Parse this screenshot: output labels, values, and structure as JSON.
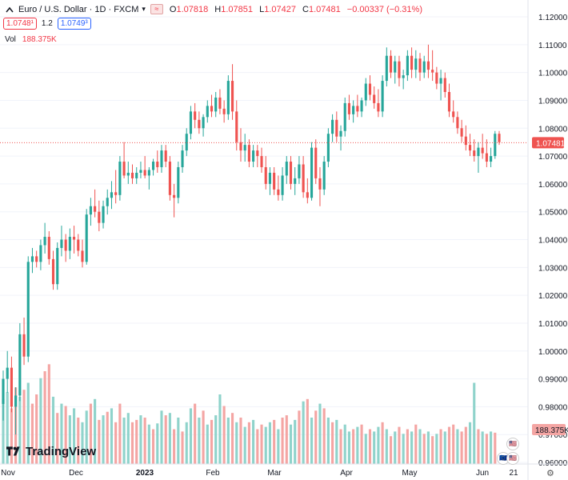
{
  "header": {
    "symbol_title": "Euro / U.S. Dollar · 1D · FXCM",
    "compare_icon": "approx-icon",
    "ohlc": {
      "o_label": "O",
      "o_value": "1.07818",
      "h_label": "H",
      "h_value": "1.07851",
      "l_label": "L",
      "l_value": "1.07427",
      "c_label": "C",
      "c_value": "1.07481",
      "change": "−0.00337 (−0.31%)"
    },
    "sell_price": "1.0748¹",
    "spread": "1.2",
    "buy_price": "1.0749³",
    "vol_label": "Vol",
    "vol_value": "188.375K"
  },
  "price_label": "1.07481",
  "volume_label": "188.375K",
  "brand": "TradingView",
  "colors": {
    "up": "#26a69a",
    "down": "#ef5350",
    "up_vol": "#8fd3cb",
    "down_vol": "#f4a5a3",
    "price_line": "#ef5350"
  },
  "chart_data": {
    "type": "candlestick",
    "price_axis": {
      "min": 0.96,
      "max": 1.12,
      "ticks": [
        "0.96000",
        "0.97000",
        "0.98000",
        "0.99000",
        "1.00000",
        "1.01000",
        "1.02000",
        "1.03000",
        "1.04000",
        "1.05000",
        "1.06000",
        "1.07000",
        "1.08000",
        "1.09000",
        "1.10000",
        "1.11000",
        "1.12000"
      ]
    },
    "time_axis": [
      "Nov",
      "Dec",
      "2023",
      "Feb",
      "Mar",
      "Apr",
      "May",
      "Jun",
      "21"
    ],
    "last_price": 1.07481,
    "ohlc": [
      [
        0.981,
        0.993,
        0.975,
        0.99
      ],
      [
        0.99,
        1.0,
        0.985,
        0.994
      ],
      [
        0.994,
        0.998,
        0.978,
        0.98
      ],
      [
        0.98,
        0.987,
        0.97,
        0.984
      ],
      [
        0.984,
        1.01,
        0.982,
        1.006
      ],
      [
        1.006,
        1.012,
        0.995,
        0.998
      ],
      [
        0.998,
        1.034,
        0.996,
        1.032
      ],
      [
        1.032,
        1.037,
        1.028,
        1.034
      ],
      [
        1.034,
        1.036,
        1.03,
        1.032
      ],
      [
        1.032,
        1.04,
        1.029,
        1.038
      ],
      [
        1.038,
        1.046,
        1.035,
        1.041
      ],
      [
        1.041,
        1.043,
        1.031,
        1.033
      ],
      [
        1.033,
        1.036,
        1.022,
        1.024
      ],
      [
        1.024,
        1.039,
        1.022,
        1.037
      ],
      [
        1.037,
        1.045,
        1.034,
        1.04
      ],
      [
        1.04,
        1.042,
        1.032,
        1.036
      ],
      [
        1.036,
        1.044,
        1.033,
        1.041
      ],
      [
        1.041,
        1.045,
        1.035,
        1.04
      ],
      [
        1.04,
        1.042,
        1.034,
        1.036
      ],
      [
        1.036,
        1.04,
        1.03,
        1.032
      ],
      [
        1.032,
        1.051,
        1.031,
        1.049
      ],
      [
        1.049,
        1.055,
        1.045,
        1.052
      ],
      [
        1.052,
        1.058,
        1.048,
        1.05
      ],
      [
        1.05,
        1.054,
        1.043,
        1.046
      ],
      [
        1.046,
        1.054,
        1.044,
        1.052
      ],
      [
        1.052,
        1.058,
        1.049,
        1.055
      ],
      [
        1.055,
        1.061,
        1.051,
        1.057
      ],
      [
        1.057,
        1.065,
        1.053,
        1.056
      ],
      [
        1.056,
        1.07,
        1.054,
        1.068
      ],
      [
        1.068,
        1.075,
        1.062,
        1.063
      ],
      [
        1.063,
        1.068,
        1.06,
        1.064
      ],
      [
        1.064,
        1.067,
        1.06,
        1.062
      ],
      [
        1.062,
        1.066,
        1.06,
        1.064
      ],
      [
        1.064,
        1.068,
        1.062,
        1.065
      ],
      [
        1.065,
        1.07,
        1.062,
        1.063
      ],
      [
        1.063,
        1.066,
        1.058,
        1.065
      ],
      [
        1.065,
        1.069,
        1.063,
        1.068
      ],
      [
        1.068,
        1.072,
        1.064,
        1.066
      ],
      [
        1.066,
        1.074,
        1.064,
        1.072
      ],
      [
        1.072,
        1.074,
        1.066,
        1.068
      ],
      [
        1.068,
        1.07,
        1.054,
        1.056
      ],
      [
        1.056,
        1.06,
        1.048,
        1.055
      ],
      [
        1.055,
        1.068,
        1.053,
        1.066
      ],
      [
        1.066,
        1.074,
        1.064,
        1.072
      ],
      [
        1.072,
        1.08,
        1.07,
        1.078
      ],
      [
        1.078,
        1.088,
        1.076,
        1.086
      ],
      [
        1.086,
        1.089,
        1.08,
        1.083
      ],
      [
        1.083,
        1.086,
        1.078,
        1.08
      ],
      [
        1.08,
        1.085,
        1.077,
        1.084
      ],
      [
        1.084,
        1.09,
        1.082,
        1.088
      ],
      [
        1.088,
        1.092,
        1.084,
        1.086
      ],
      [
        1.086,
        1.093,
        1.084,
        1.091
      ],
      [
        1.091,
        1.094,
        1.085,
        1.087
      ],
      [
        1.087,
        1.09,
        1.082,
        1.085
      ],
      [
        1.085,
        1.099,
        1.083,
        1.097
      ],
      [
        1.097,
        1.103,
        1.083,
        1.086
      ],
      [
        1.086,
        1.09,
        1.072,
        1.075
      ],
      [
        1.075,
        1.08,
        1.068,
        1.072
      ],
      [
        1.072,
        1.078,
        1.068,
        1.074
      ],
      [
        1.074,
        1.076,
        1.066,
        1.068
      ],
      [
        1.068,
        1.074,
        1.066,
        1.072
      ],
      [
        1.072,
        1.074,
        1.066,
        1.07
      ],
      [
        1.07,
        1.073,
        1.064,
        1.066
      ],
      [
        1.066,
        1.07,
        1.058,
        1.06
      ],
      [
        1.06,
        1.066,
        1.056,
        1.064
      ],
      [
        1.064,
        1.066,
        1.056,
        1.058
      ],
      [
        1.058,
        1.063,
        1.054,
        1.056
      ],
      [
        1.056,
        1.066,
        1.054,
        1.063
      ],
      [
        1.063,
        1.07,
        1.06,
        1.068
      ],
      [
        1.068,
        1.07,
        1.058,
        1.06
      ],
      [
        1.06,
        1.066,
        1.056,
        1.062
      ],
      [
        1.062,
        1.07,
        1.06,
        1.067
      ],
      [
        1.067,
        1.07,
        1.055,
        1.057
      ],
      [
        1.057,
        1.062,
        1.053,
        1.055
      ],
      [
        1.055,
        1.075,
        1.054,
        1.073
      ],
      [
        1.073,
        1.076,
        1.06,
        1.062
      ],
      [
        1.062,
        1.066,
        1.052,
        1.058
      ],
      [
        1.058,
        1.07,
        1.056,
        1.068
      ],
      [
        1.068,
        1.08,
        1.066,
        1.078
      ],
      [
        1.078,
        1.085,
        1.075,
        1.083
      ],
      [
        1.083,
        1.086,
        1.075,
        1.077
      ],
      [
        1.077,
        1.081,
        1.072,
        1.079
      ],
      [
        1.079,
        1.091,
        1.077,
        1.089
      ],
      [
        1.089,
        1.092,
        1.083,
        1.085
      ],
      [
        1.085,
        1.09,
        1.082,
        1.088
      ],
      [
        1.088,
        1.092,
        1.084,
        1.086
      ],
      [
        1.086,
        1.091,
        1.084,
        1.09
      ],
      [
        1.09,
        1.098,
        1.088,
        1.096
      ],
      [
        1.096,
        1.099,
        1.09,
        1.092
      ],
      [
        1.092,
        1.095,
        1.087,
        1.089
      ],
      [
        1.089,
        1.094,
        1.084,
        1.086
      ],
      [
        1.086,
        1.099,
        1.084,
        1.097
      ],
      [
        1.097,
        1.109,
        1.095,
        1.106
      ],
      [
        1.106,
        1.108,
        1.098,
        1.1
      ],
      [
        1.1,
        1.106,
        1.096,
        1.104
      ],
      [
        1.104,
        1.106,
        1.095,
        1.098
      ],
      [
        1.098,
        1.101,
        1.094,
        1.099
      ],
      [
        1.099,
        1.108,
        1.097,
        1.106
      ],
      [
        1.106,
        1.109,
        1.098,
        1.101
      ],
      [
        1.101,
        1.108,
        1.098,
        1.105
      ],
      [
        1.105,
        1.107,
        1.097,
        1.1
      ],
      [
        1.1,
        1.106,
        1.098,
        1.104
      ],
      [
        1.104,
        1.11,
        1.098,
        1.101
      ],
      [
        1.101,
        1.108,
        1.097,
        1.1
      ],
      [
        1.1,
        1.102,
        1.094,
        1.096
      ],
      [
        1.096,
        1.101,
        1.09,
        1.098
      ],
      [
        1.098,
        1.1,
        1.091,
        1.093
      ],
      [
        1.093,
        1.096,
        1.084,
        1.086
      ],
      [
        1.086,
        1.09,
        1.082,
        1.084
      ],
      [
        1.084,
        1.086,
        1.078,
        1.08
      ],
      [
        1.08,
        1.083,
        1.075,
        1.077
      ],
      [
        1.077,
        1.081,
        1.072,
        1.074
      ],
      [
        1.074,
        1.078,
        1.07,
        1.072
      ],
      [
        1.072,
        1.076,
        1.068,
        1.07
      ],
      [
        1.07,
        1.075,
        1.064,
        1.073
      ],
      [
        1.073,
        1.078,
        1.069,
        1.071
      ],
      [
        1.071,
        1.076,
        1.066,
        1.068
      ],
      [
        1.068,
        1.073,
        1.066,
        1.07
      ],
      [
        1.07,
        1.079,
        1.069,
        1.078
      ],
      [
        1.078,
        1.079,
        1.074,
        1.075
      ]
    ],
    "volume": [
      [
        0.56,
        1
      ],
      [
        0.62,
        1
      ],
      [
        0.48,
        0
      ],
      [
        0.66,
        0
      ],
      [
        0.58,
        1
      ],
      [
        0.64,
        0
      ],
      [
        0.7,
        1
      ],
      [
        0.52,
        0
      ],
      [
        0.6,
        0
      ],
      [
        0.74,
        1
      ],
      [
        0.8,
        0
      ],
      [
        0.86,
        0
      ],
      [
        0.58,
        1
      ],
      [
        0.44,
        0
      ],
      [
        0.52,
        1
      ],
      [
        0.5,
        0
      ],
      [
        0.42,
        1
      ],
      [
        0.48,
        1
      ],
      [
        0.4,
        0
      ],
      [
        0.36,
        1
      ],
      [
        0.46,
        1
      ],
      [
        0.52,
        0
      ],
      [
        0.56,
        1
      ],
      [
        0.38,
        0
      ],
      [
        0.42,
        1
      ],
      [
        0.45,
        0
      ],
      [
        0.48,
        1
      ],
      [
        0.36,
        0
      ],
      [
        0.52,
        0
      ],
      [
        0.4,
        1
      ],
      [
        0.44,
        1
      ],
      [
        0.36,
        0
      ],
      [
        0.38,
        0
      ],
      [
        0.42,
        1
      ],
      [
        0.4,
        0
      ],
      [
        0.34,
        1
      ],
      [
        0.3,
        0
      ],
      [
        0.35,
        1
      ],
      [
        0.46,
        1
      ],
      [
        0.42,
        0
      ],
      [
        0.44,
        1
      ],
      [
        0.3,
        0
      ],
      [
        0.4,
        1
      ],
      [
        0.28,
        0
      ],
      [
        0.36,
        1
      ],
      [
        0.48,
        1
      ],
      [
        0.52,
        0
      ],
      [
        0.4,
        1
      ],
      [
        0.46,
        0
      ],
      [
        0.34,
        1
      ],
      [
        0.38,
        0
      ],
      [
        0.42,
        1
      ],
      [
        0.6,
        1
      ],
      [
        0.5,
        0
      ],
      [
        0.4,
        1
      ],
      [
        0.44,
        0
      ],
      [
        0.36,
        1
      ],
      [
        0.4,
        0
      ],
      [
        0.32,
        1
      ],
      [
        0.36,
        0
      ],
      [
        0.38,
        1
      ],
      [
        0.3,
        0
      ],
      [
        0.34,
        0
      ],
      [
        0.32,
        1
      ],
      [
        0.36,
        1
      ],
      [
        0.38,
        0
      ],
      [
        0.3,
        1
      ],
      [
        0.4,
        0
      ],
      [
        0.42,
        0
      ],
      [
        0.34,
        1
      ],
      [
        0.38,
        1
      ],
      [
        0.46,
        0
      ],
      [
        0.54,
        1
      ],
      [
        0.56,
        0
      ],
      [
        0.4,
        1
      ],
      [
        0.46,
        0
      ],
      [
        0.52,
        1
      ],
      [
        0.48,
        0
      ],
      [
        0.4,
        1
      ],
      [
        0.36,
        0
      ],
      [
        0.38,
        1
      ],
      [
        0.3,
        0
      ],
      [
        0.34,
        1
      ],
      [
        0.28,
        1
      ],
      [
        0.3,
        0
      ],
      [
        0.32,
        1
      ],
      [
        0.34,
        0
      ],
      [
        0.26,
        1
      ],
      [
        0.3,
        0
      ],
      [
        0.28,
        1
      ],
      [
        0.32,
        1
      ],
      [
        0.36,
        0
      ],
      [
        0.3,
        1
      ],
      [
        0.24,
        0
      ],
      [
        0.28,
        1
      ],
      [
        0.32,
        0
      ],
      [
        0.26,
        1
      ],
      [
        0.3,
        0
      ],
      [
        0.28,
        1
      ],
      [
        0.34,
        0
      ],
      [
        0.3,
        1
      ],
      [
        0.26,
        0
      ],
      [
        0.28,
        1
      ],
      [
        0.24,
        0
      ],
      [
        0.26,
        1
      ],
      [
        0.3,
        0
      ],
      [
        0.28,
        1
      ],
      [
        0.32,
        0
      ],
      [
        0.34,
        0
      ],
      [
        0.3,
        1
      ],
      [
        0.28,
        0
      ],
      [
        0.32,
        0
      ],
      [
        0.36,
        1
      ],
      [
        0.7,
        1
      ],
      [
        0.3,
        0
      ],
      [
        0.28,
        1
      ],
      [
        0.26,
        0
      ],
      [
        0.28,
        1
      ],
      [
        0.27,
        0
      ]
    ]
  }
}
